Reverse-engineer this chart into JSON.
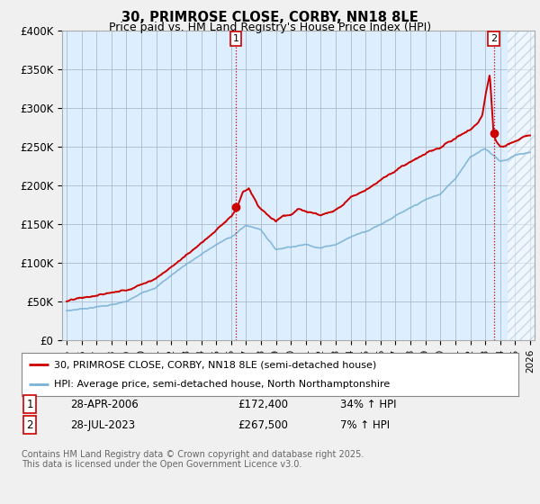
{
  "title": "30, PRIMROSE CLOSE, CORBY, NN18 8LE",
  "subtitle": "Price paid vs. HM Land Registry's House Price Index (HPI)",
  "ylim": [
    0,
    400000
  ],
  "yticks": [
    0,
    50000,
    100000,
    150000,
    200000,
    250000,
    300000,
    350000,
    400000
  ],
  "ytick_labels": [
    "£0",
    "£50K",
    "£100K",
    "£150K",
    "£200K",
    "£250K",
    "£300K",
    "£350K",
    "£400K"
  ],
  "xlim_start": 1994.7,
  "xlim_end": 2026.3,
  "transaction1_date": 2006.32,
  "transaction1_price": 172400,
  "transaction2_date": 2023.57,
  "transaction2_price": 267500,
  "line1_color": "#cc0000",
  "line2_color": "#7ab3d4",
  "vline_color": "#cc0000",
  "plot_bg_color": "#ddeeff",
  "hatch_color": "#c0c8d8",
  "grid_color": "#aabbcc",
  "legend_line1": "30, PRIMROSE CLOSE, CORBY, NN18 8LE (semi-detached house)",
  "legend_line2": "HPI: Average price, semi-detached house, North Northamptonshire",
  "table_row1": [
    "1",
    "28-APR-2006",
    "£172,400",
    "34% ↑ HPI"
  ],
  "table_row2": [
    "2",
    "28-JUL-2023",
    "£267,500",
    "7% ↑ HPI"
  ],
  "footer": "Contains HM Land Registry data © Crown copyright and database right 2025.\nThis data is licensed under the Open Government Licence v3.0.",
  "hatch_start": 2024.5
}
